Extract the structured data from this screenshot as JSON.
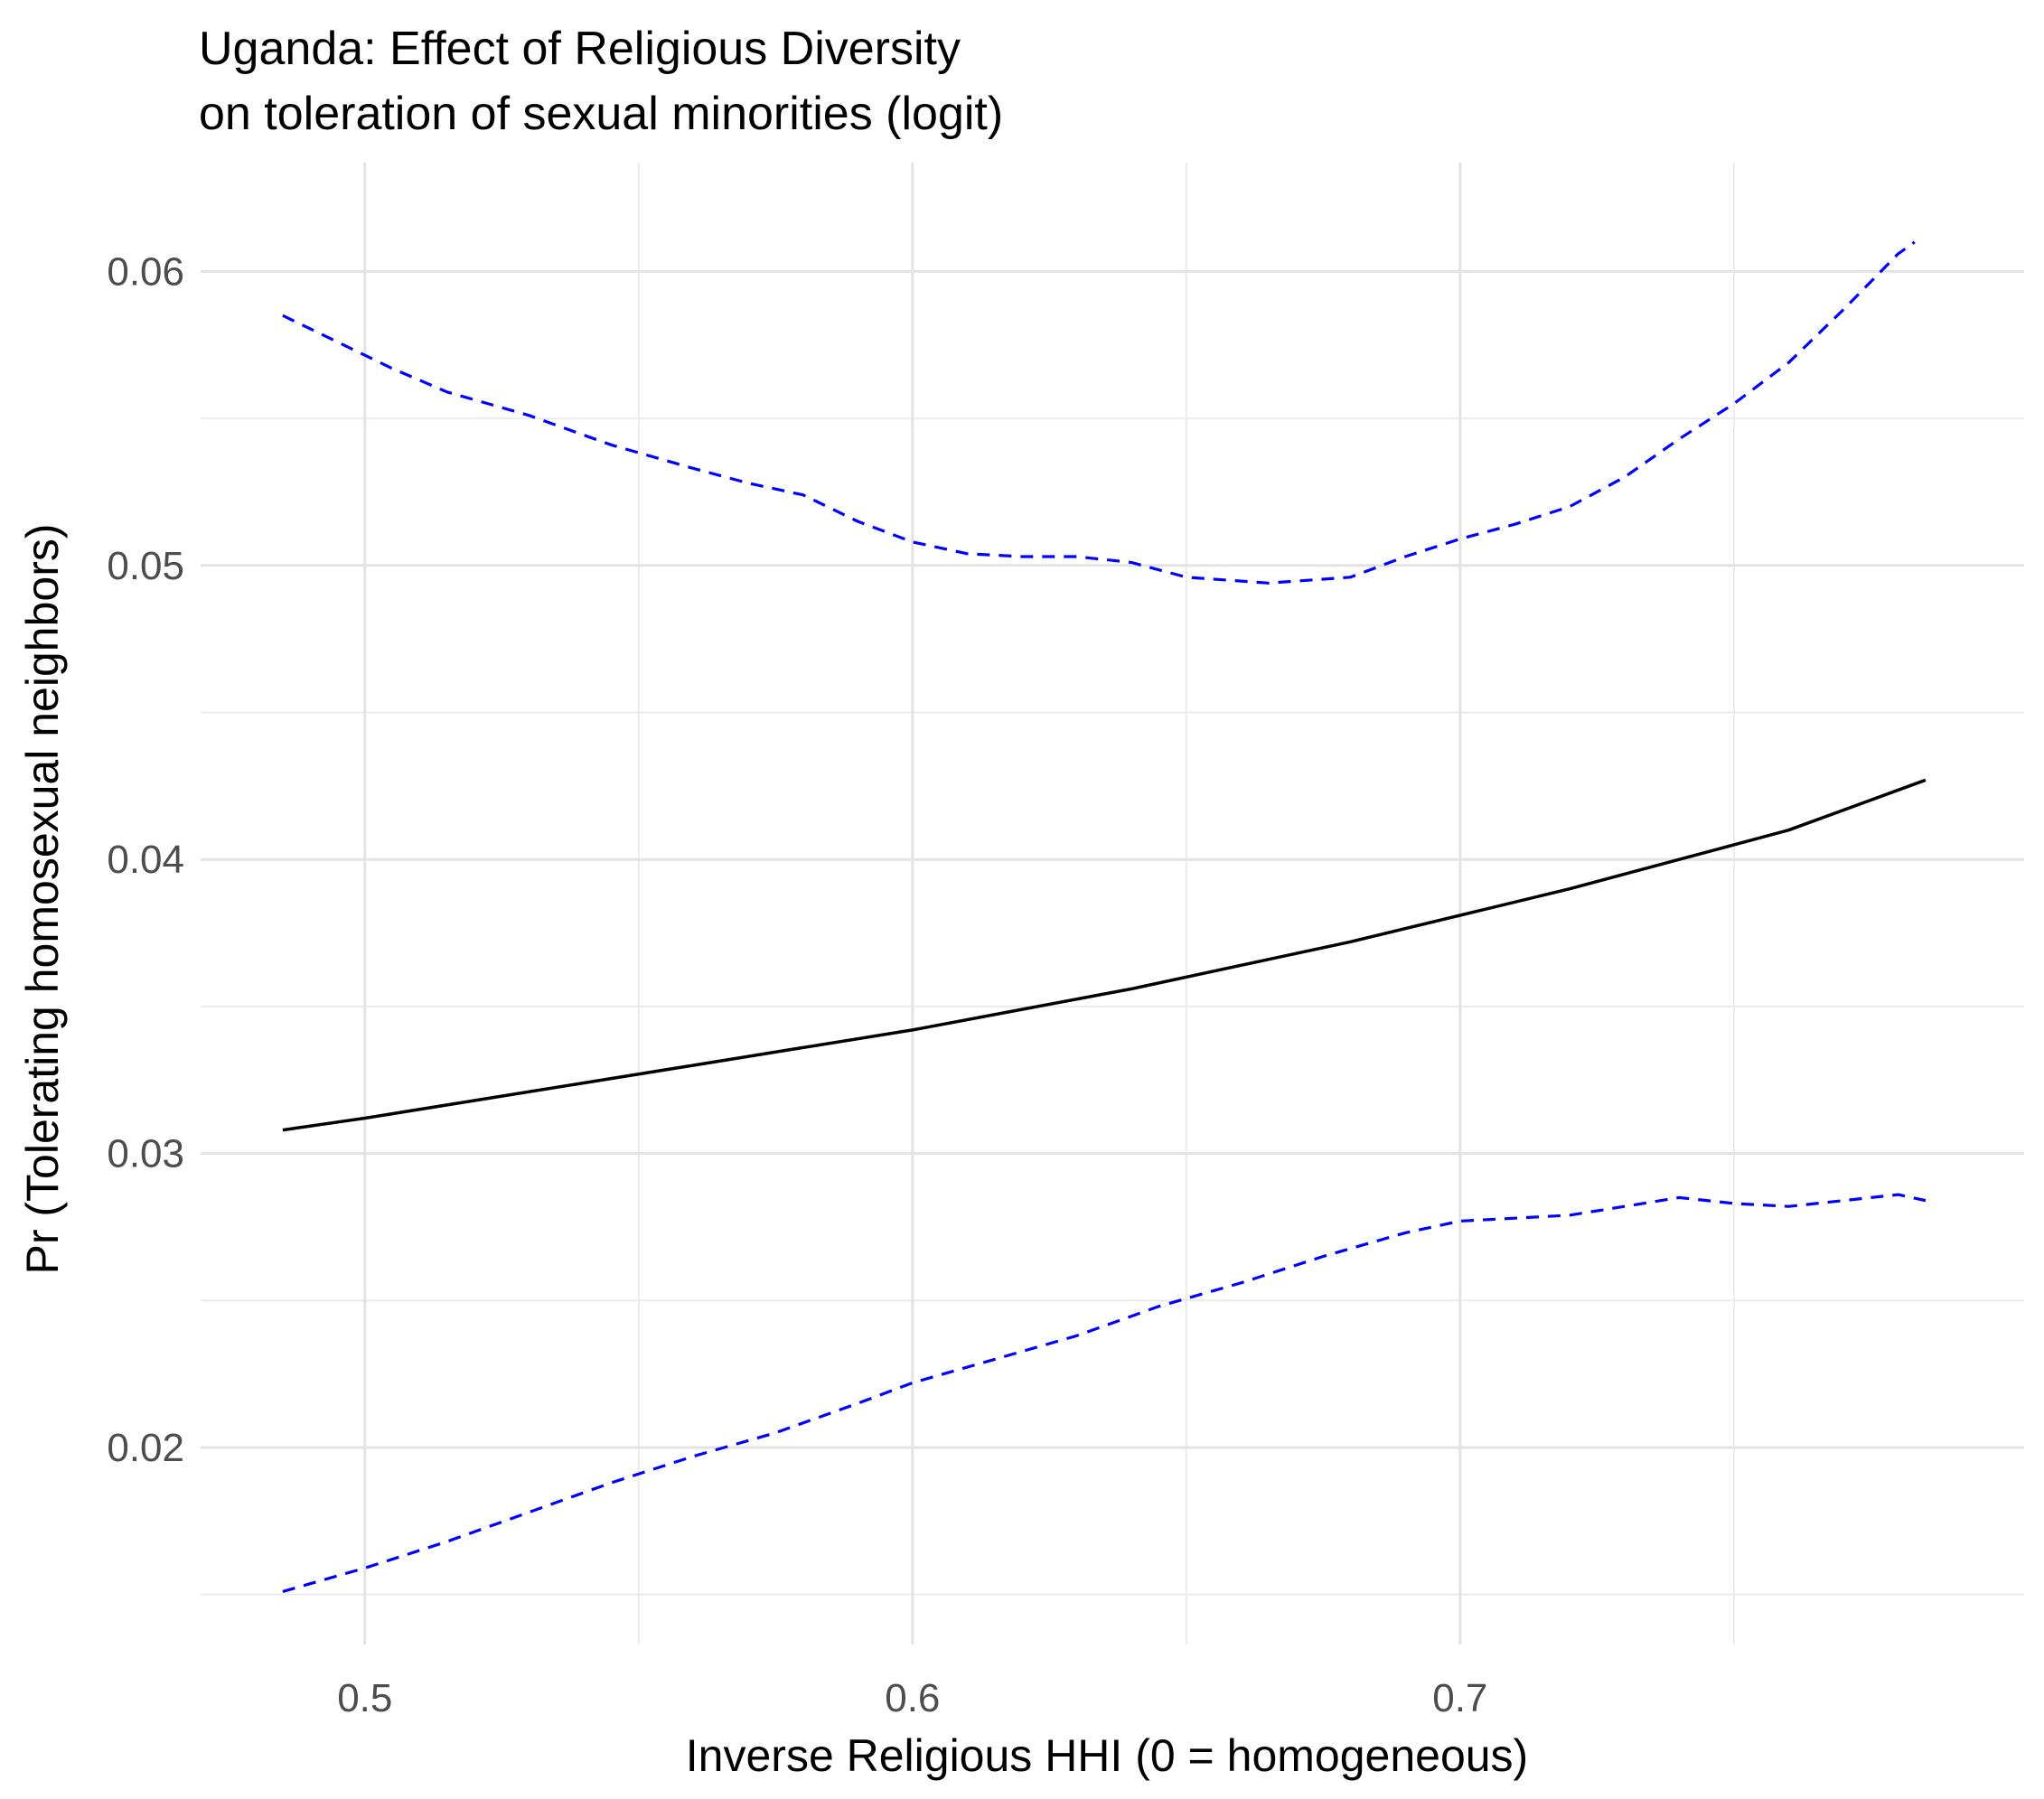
{
  "chart_data": {
    "type": "line",
    "title": "Uganda: Effect of Religious Diversity",
    "subtitle": "on toleration of sexual minorities (logit)",
    "xlabel": "Inverse Religious HHI (0 = homogeneous)",
    "ylabel": "Pr (Tolerating homosexual neighbors)",
    "xlim": [
      0.47,
      0.803
    ],
    "ylim": [
      0.0133,
      0.0637
    ],
    "x_ticks": [
      "0.5",
      "0.6",
      "0.7"
    ],
    "y_ticks": [
      "0.02",
      "0.03",
      "0.04",
      "0.05",
      "0.06"
    ],
    "x_tick_values": [
      0.5,
      0.6,
      0.7
    ],
    "y_tick_values": [
      0.02,
      0.03,
      0.04,
      0.05,
      0.06
    ],
    "x_minor_values": [
      0.55,
      0.65,
      0.75
    ],
    "y_minor_values": [
      0.015,
      0.025,
      0.035,
      0.045,
      0.055
    ],
    "grid": true,
    "series": [
      {
        "role": "estimate",
        "color": "#000000",
        "dash": "solid",
        "x": [
          0.485,
          0.5,
          0.52,
          0.54,
          0.56,
          0.58,
          0.6,
          0.62,
          0.64,
          0.66,
          0.68,
          0.7,
          0.72,
          0.74,
          0.76,
          0.785
        ],
        "y": [
          0.0308,
          0.0312,
          0.0318,
          0.0324,
          0.033,
          0.0336,
          0.0342,
          0.0349,
          0.0356,
          0.0364,
          0.0372,
          0.0381,
          0.039,
          0.04,
          0.041,
          0.0427
        ]
      },
      {
        "role": "upper bound",
        "color": "#0000ff",
        "dash": "dashed",
        "x": [
          0.485,
          0.495,
          0.505,
          0.515,
          0.53,
          0.545,
          0.56,
          0.57,
          0.58,
          0.59,
          0.6,
          0.61,
          0.62,
          0.63,
          0.64,
          0.65,
          0.665,
          0.68,
          0.69,
          0.7,
          0.71,
          0.72,
          0.73,
          0.74,
          0.75,
          0.76,
          0.77,
          0.78,
          0.783
        ],
        "y": [
          0.0585,
          0.0576,
          0.0567,
          0.0559,
          0.0551,
          0.0541,
          0.0533,
          0.0528,
          0.0524,
          0.0515,
          0.0508,
          0.0504,
          0.0503,
          0.0503,
          0.0501,
          0.0496,
          0.0494,
          0.0496,
          0.0503,
          0.0509,
          0.0514,
          0.052,
          0.053,
          0.0543,
          0.0555,
          0.0569,
          0.0587,
          0.0606,
          0.061
        ]
      },
      {
        "role": "lower bound",
        "color": "#0000ff",
        "dash": "dashed",
        "x": [
          0.485,
          0.5,
          0.515,
          0.53,
          0.545,
          0.56,
          0.575,
          0.59,
          0.6,
          0.615,
          0.63,
          0.645,
          0.66,
          0.675,
          0.69,
          0.7,
          0.71,
          0.72,
          0.73,
          0.74,
          0.75,
          0.76,
          0.77,
          0.78,
          0.785
        ],
        "y": [
          0.0151,
          0.0159,
          0.0168,
          0.0178,
          0.0188,
          0.0197,
          0.0205,
          0.0215,
          0.0222,
          0.023,
          0.0238,
          0.0248,
          0.0256,
          0.0265,
          0.0273,
          0.0277,
          0.0278,
          0.0279,
          0.0282,
          0.0285,
          0.0283,
          0.0282,
          0.0284,
          0.0286,
          0.0284
        ]
      }
    ]
  }
}
